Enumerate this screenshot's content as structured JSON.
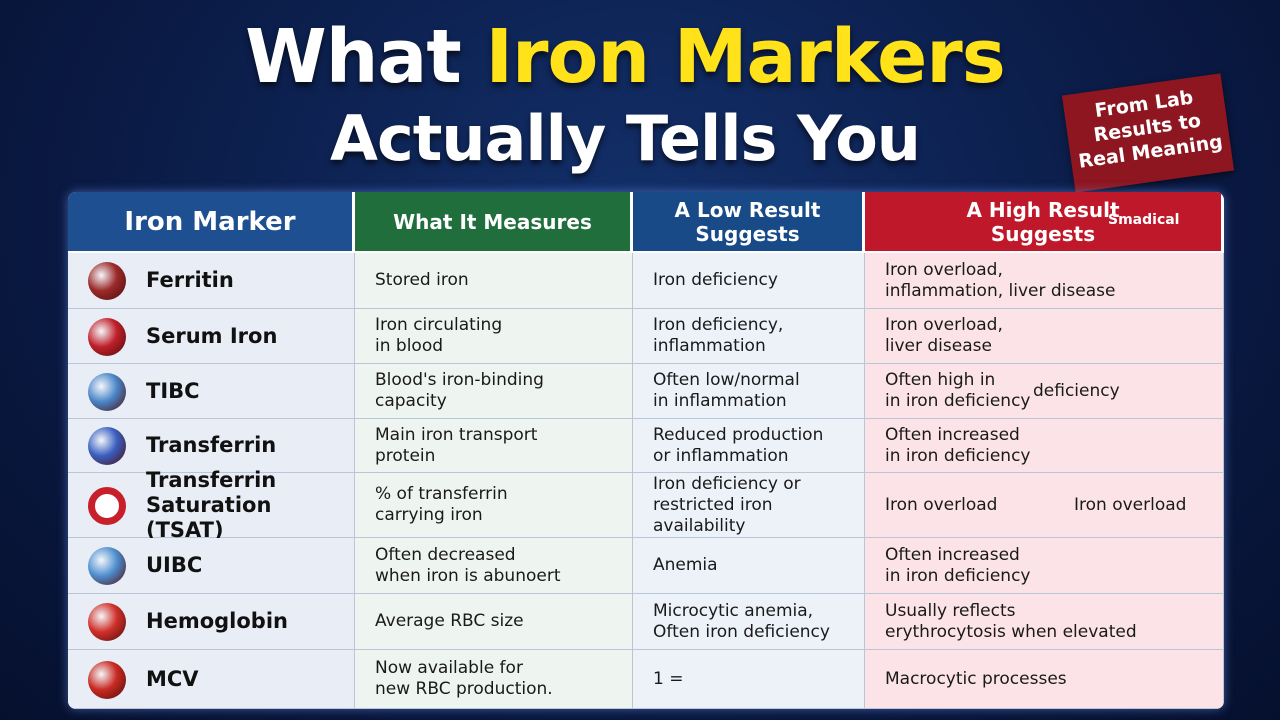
{
  "header": {
    "title": {
      "lead": "What",
      "highlight": "Iron Markers",
      "line2": "Actually Tells You"
    },
    "badge": [
      "From Lab",
      "Results to",
      "Real Meaning"
    ]
  },
  "table": {
    "columns": [
      [
        "Iron Marker"
      ],
      [
        "What It Measures"
      ],
      [
        "A Low Result",
        "Suggests"
      ],
      [
        "A High Result",
        "Suggests"
      ]
    ],
    "logo": "Smadical",
    "rows": [
      {
        "cells": [
          [
            "Ferritin"
          ],
          [
            "Stored iron"
          ],
          [
            "Iron deficiency"
          ],
          [
            "Iron overload,",
            "inflammation, liver disease"
          ]
        ]
      },
      {
        "cells": [
          [
            "Serum Iron"
          ],
          [
            "Iron circulating",
            "in blood"
          ],
          [
            "Iron deficiency,",
            "inflammation"
          ],
          [
            "Iron overload,",
            "liver disease"
          ]
        ]
      },
      {
        "cells": [
          [
            "TIBC"
          ],
          [
            "Blood's iron-binding",
            "capacity"
          ],
          [
            "Often low/normal",
            "in inflammation"
          ],
          [
            "Often high in",
            "in iron deficiency"
          ]
        ],
        "extra": "deficiency"
      },
      {
        "cells": [
          [
            "Transferrin"
          ],
          [
            "Main iron transport",
            "protein"
          ],
          [
            "Reduced production",
            "or inflammation"
          ],
          [
            "Often increased",
            "in iron deficiency"
          ]
        ]
      },
      {
        "cells": [
          [
            "Transferrin",
            "Saturation (TSAT)"
          ],
          [
            "% of transferrin",
            "carrying iron"
          ],
          [
            "Iron deficiency or",
            "restricted iron availability"
          ],
          [
            "Iron overload"
          ]
        ],
        "extra": "Iron overload"
      },
      {
        "cells": [
          [
            "UIBC"
          ],
          [
            "Often decreased",
            "when iron is abunoert"
          ],
          [
            "Anemia"
          ],
          [
            "Often increased",
            "in iron deficiency"
          ]
        ]
      },
      {
        "cells": [
          [
            "Hemoglobin"
          ],
          [
            "Average RBC size"
          ],
          [
            "Microcytic anemia,",
            "Often iron deficiency"
          ],
          [
            "Usually reflects",
            "erythrocytosis when elevated"
          ]
        ]
      },
      {
        "cells": [
          [
            "MCV"
          ],
          [
            "Now available for",
            "new RBC production."
          ],
          [
            "1 ="
          ],
          [
            "Macrocytic processes"
          ]
        ]
      }
    ]
  }
}
